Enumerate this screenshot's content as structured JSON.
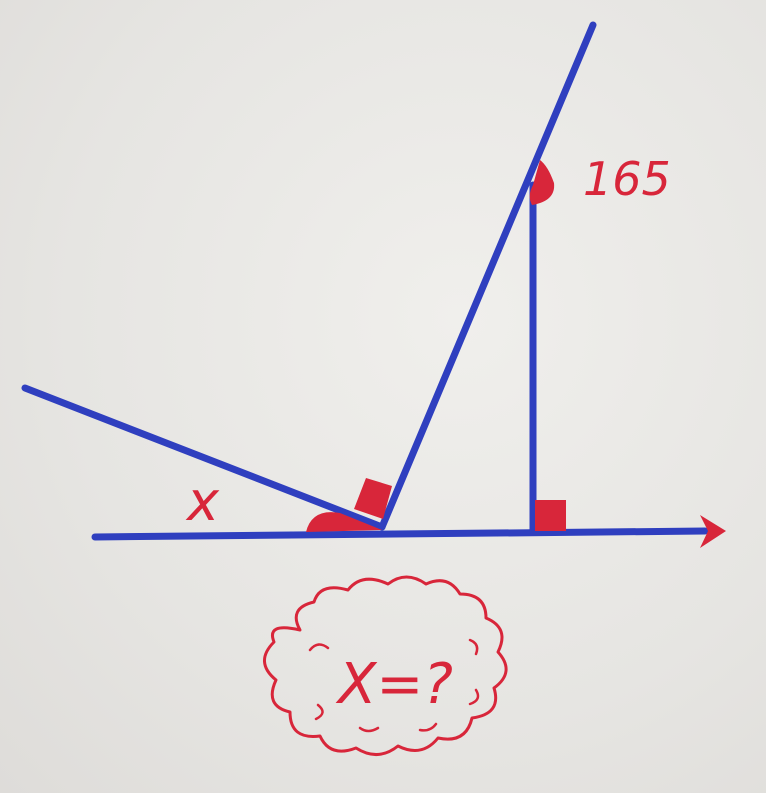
{
  "labels": {
    "angle_given": "165",
    "angle_unknown": "x",
    "question": "X=?"
  },
  "colors": {
    "paper": "#e9e8e5",
    "line_ink": "#2f3fbf",
    "mark_ink": "#d8263a"
  }
}
